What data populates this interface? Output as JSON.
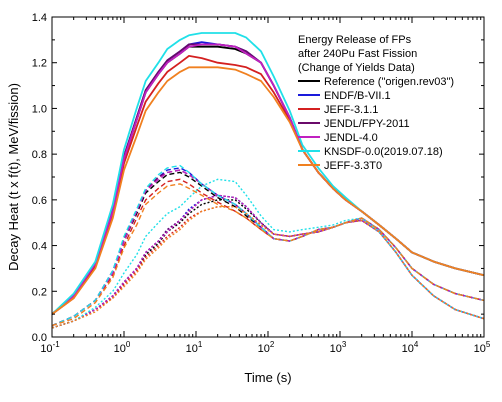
{
  "chart_data": {
    "type": "line",
    "xscale": "log",
    "xlim": [
      0.1,
      100000
    ],
    "ylim": [
      0.0,
      1.4
    ],
    "xlabel": "Time (s)",
    "ylabel": "Decay Heat (t x f(t), MeV/fission)",
    "xticks": [
      "10^-1",
      "10^0",
      "10^1",
      "10^2",
      "10^3",
      "10^4",
      "10^5"
    ],
    "yticks": [
      "0.0",
      "0.2",
      "0.4",
      "0.6",
      "0.8",
      "1.0",
      "1.2",
      "1.4"
    ],
    "legend": {
      "placement": "top-right",
      "title_lines": [
        "Energy Release of FPs",
        "after 240Pu Fast Fission",
        "(Change of Yields Data)"
      ]
    },
    "line_styles": [
      "solid",
      "dashed",
      "dash-dot"
    ],
    "series": [
      {
        "name": "Reference (\"origen.rev03\")",
        "color": "#000000",
        "total": [
          0.1,
          0.18,
          0.32,
          0.55,
          0.78,
          0.95,
          1.07,
          1.15,
          1.2,
          1.24,
          1.27,
          1.27,
          1.27,
          1.26,
          1.24,
          1.2,
          1.1,
          0.96,
          0.82,
          0.72,
          0.65,
          0.6,
          0.55,
          0.49,
          0.43,
          0.37,
          0.33,
          0.3,
          0.27
        ],
        "component_a": [
          0.05,
          0.09,
          0.16,
          0.28,
          0.42,
          0.54,
          0.63,
          0.68,
          0.71,
          0.72,
          0.7,
          0.66,
          0.61,
          0.57,
          0.53,
          0.48,
          0.43,
          0.42,
          0.44,
          0.47,
          0.48,
          0.5,
          0.52,
          0.47,
          0.39,
          0.3,
          0.23,
          0.19,
          0.16
        ],
        "component_b": [
          0.04,
          0.07,
          0.12,
          0.18,
          0.24,
          0.3,
          0.36,
          0.41,
          0.46,
          0.5,
          0.54,
          0.58,
          0.6,
          0.6,
          0.56,
          0.5,
          0.45,
          0.44,
          0.45,
          0.46,
          0.48,
          0.5,
          0.51,
          0.46,
          0.37,
          0.27,
          0.18,
          0.12,
          0.08
        ]
      },
      {
        "name": "ENDF/B-VII.1",
        "color": "#1a1adb",
        "total": [
          0.1,
          0.18,
          0.32,
          0.56,
          0.79,
          0.96,
          1.08,
          1.16,
          1.21,
          1.25,
          1.28,
          1.29,
          1.28,
          1.27,
          1.25,
          1.2,
          1.1,
          0.96,
          0.82,
          0.72,
          0.65,
          0.6,
          0.55,
          0.49,
          0.43,
          0.37,
          0.33,
          0.3,
          0.27
        ],
        "component_a": [
          0.05,
          0.09,
          0.16,
          0.29,
          0.43,
          0.55,
          0.64,
          0.7,
          0.73,
          0.74,
          0.72,
          0.67,
          0.62,
          0.58,
          0.54,
          0.48,
          0.43,
          0.42,
          0.44,
          0.47,
          0.48,
          0.5,
          0.52,
          0.47,
          0.39,
          0.3,
          0.23,
          0.19,
          0.16
        ],
        "component_b": [
          0.04,
          0.07,
          0.12,
          0.18,
          0.24,
          0.3,
          0.37,
          0.42,
          0.47,
          0.51,
          0.56,
          0.6,
          0.62,
          0.61,
          0.57,
          0.5,
          0.45,
          0.44,
          0.45,
          0.46,
          0.48,
          0.5,
          0.51,
          0.46,
          0.37,
          0.27,
          0.18,
          0.12,
          0.08
        ]
      },
      {
        "name": "JEFF-3.1.1",
        "color": "#d42020",
        "total": [
          0.1,
          0.17,
          0.31,
          0.54,
          0.76,
          0.92,
          1.03,
          1.11,
          1.16,
          1.2,
          1.23,
          1.22,
          1.2,
          1.19,
          1.18,
          1.15,
          1.07,
          0.95,
          0.82,
          0.72,
          0.65,
          0.6,
          0.55,
          0.49,
          0.43,
          0.37,
          0.33,
          0.3,
          0.27
        ],
        "component_a": [
          0.05,
          0.09,
          0.16,
          0.27,
          0.4,
          0.52,
          0.6,
          0.65,
          0.68,
          0.69,
          0.67,
          0.63,
          0.59,
          0.55,
          0.52,
          0.47,
          0.43,
          0.42,
          0.44,
          0.47,
          0.48,
          0.5,
          0.52,
          0.47,
          0.39,
          0.3,
          0.23,
          0.19,
          0.16
        ],
        "component_b": [
          0.04,
          0.07,
          0.12,
          0.17,
          0.23,
          0.29,
          0.35,
          0.4,
          0.44,
          0.48,
          0.52,
          0.55,
          0.57,
          0.57,
          0.54,
          0.49,
          0.45,
          0.44,
          0.45,
          0.46,
          0.48,
          0.5,
          0.51,
          0.46,
          0.37,
          0.27,
          0.18,
          0.12,
          0.08
        ]
      },
      {
        "name": "JENDL/FPY-2011",
        "color": "#6a0a6a",
        "total": [
          0.1,
          0.18,
          0.32,
          0.56,
          0.79,
          0.96,
          1.08,
          1.16,
          1.21,
          1.25,
          1.28,
          1.28,
          1.28,
          1.27,
          1.25,
          1.2,
          1.1,
          0.96,
          0.82,
          0.72,
          0.65,
          0.6,
          0.55,
          0.49,
          0.43,
          0.37,
          0.33,
          0.3,
          0.27
        ],
        "component_a": [
          0.05,
          0.09,
          0.16,
          0.29,
          0.43,
          0.55,
          0.64,
          0.7,
          0.72,
          0.73,
          0.71,
          0.67,
          0.62,
          0.58,
          0.54,
          0.48,
          0.43,
          0.42,
          0.44,
          0.47,
          0.48,
          0.5,
          0.52,
          0.47,
          0.39,
          0.3,
          0.23,
          0.19,
          0.16
        ],
        "component_b": [
          0.04,
          0.07,
          0.12,
          0.18,
          0.24,
          0.3,
          0.37,
          0.42,
          0.47,
          0.51,
          0.55,
          0.6,
          0.62,
          0.61,
          0.57,
          0.5,
          0.45,
          0.44,
          0.45,
          0.46,
          0.48,
          0.5,
          0.51,
          0.46,
          0.37,
          0.27,
          0.18,
          0.12,
          0.08
        ]
      },
      {
        "name": "JENDL-4.0",
        "color": "#c020c0",
        "total": [
          0.1,
          0.18,
          0.32,
          0.55,
          0.78,
          0.95,
          1.07,
          1.15,
          1.2,
          1.24,
          1.27,
          1.28,
          1.28,
          1.27,
          1.24,
          1.2,
          1.1,
          0.96,
          0.82,
          0.72,
          0.65,
          0.6,
          0.55,
          0.49,
          0.43,
          0.37,
          0.33,
          0.3,
          0.27
        ],
        "component_a": [
          0.05,
          0.09,
          0.16,
          0.28,
          0.42,
          0.55,
          0.64,
          0.69,
          0.72,
          0.73,
          0.71,
          0.67,
          0.62,
          0.58,
          0.54,
          0.48,
          0.43,
          0.42,
          0.44,
          0.47,
          0.48,
          0.5,
          0.52,
          0.47,
          0.39,
          0.3,
          0.23,
          0.19,
          0.16
        ],
        "component_b": [
          0.04,
          0.07,
          0.12,
          0.18,
          0.24,
          0.3,
          0.37,
          0.42,
          0.46,
          0.51,
          0.55,
          0.6,
          0.62,
          0.61,
          0.57,
          0.5,
          0.45,
          0.44,
          0.45,
          0.46,
          0.48,
          0.5,
          0.51,
          0.46,
          0.37,
          0.27,
          0.18,
          0.12,
          0.08
        ]
      },
      {
        "name": "KNSDF-0.0(2019.07.18)",
        "color": "#20e0e8",
        "total": [
          0.1,
          0.19,
          0.33,
          0.58,
          0.82,
          1.0,
          1.12,
          1.2,
          1.26,
          1.3,
          1.32,
          1.33,
          1.33,
          1.33,
          1.31,
          1.25,
          1.14,
          0.99,
          0.84,
          0.74,
          0.66,
          0.61,
          0.55,
          0.49,
          0.43,
          0.37,
          0.33,
          0.3,
          0.27
        ],
        "component_a": [
          0.05,
          0.09,
          0.16,
          0.29,
          0.44,
          0.56,
          0.65,
          0.71,
          0.74,
          0.75,
          0.72,
          0.67,
          0.62,
          0.58,
          0.54,
          0.48,
          0.43,
          0.42,
          0.44,
          0.47,
          0.48,
          0.5,
          0.52,
          0.47,
          0.39,
          0.3,
          0.23,
          0.19,
          0.16
        ],
        "component_b": [
          0.04,
          0.07,
          0.13,
          0.2,
          0.28,
          0.36,
          0.44,
          0.5,
          0.54,
          0.57,
          0.61,
          0.66,
          0.69,
          0.68,
          0.62,
          0.53,
          0.47,
          0.46,
          0.47,
          0.48,
          0.49,
          0.51,
          0.52,
          0.46,
          0.37,
          0.27,
          0.18,
          0.12,
          0.08
        ]
      },
      {
        "name": "JEFF-3.3T0",
        "color": "#f08020",
        "total": [
          0.1,
          0.17,
          0.3,
          0.52,
          0.73,
          0.88,
          0.99,
          1.07,
          1.12,
          1.16,
          1.18,
          1.18,
          1.18,
          1.17,
          1.15,
          1.12,
          1.05,
          0.94,
          0.82,
          0.72,
          0.65,
          0.6,
          0.55,
          0.49,
          0.43,
          0.37,
          0.33,
          0.3,
          0.27
        ],
        "component_a": [
          0.05,
          0.08,
          0.15,
          0.26,
          0.39,
          0.49,
          0.58,
          0.63,
          0.66,
          0.67,
          0.65,
          0.62,
          0.58,
          0.55,
          0.52,
          0.47,
          0.43,
          0.42,
          0.44,
          0.47,
          0.48,
          0.5,
          0.52,
          0.47,
          0.39,
          0.3,
          0.23,
          0.19,
          0.16
        ],
        "component_b": [
          0.04,
          0.07,
          0.11,
          0.17,
          0.22,
          0.28,
          0.34,
          0.39,
          0.43,
          0.47,
          0.51,
          0.55,
          0.57,
          0.57,
          0.54,
          0.49,
          0.45,
          0.44,
          0.45,
          0.46,
          0.48,
          0.5,
          0.51,
          0.46,
          0.37,
          0.27,
          0.18,
          0.12,
          0.08
        ]
      }
    ],
    "x": [
      0.1,
      0.2,
      0.4,
      0.7,
      1.0,
      1.5,
      2,
      3,
      4,
      6,
      8,
      12,
      20,
      35,
      50,
      80,
      120,
      200,
      300,
      500,
      800,
      1200,
      2000,
      3500,
      6000,
      10000,
      20000,
      40000,
      100000
    ]
  }
}
